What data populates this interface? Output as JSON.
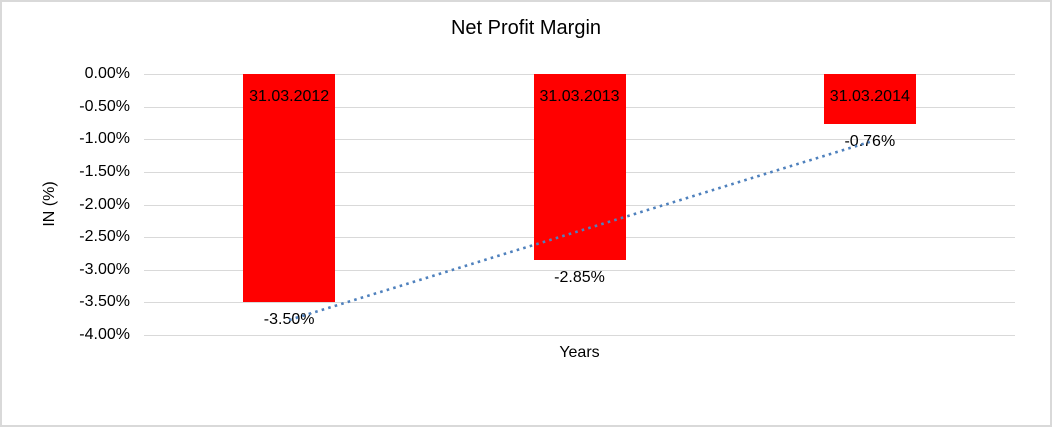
{
  "window": {
    "background": "#FFFFFF",
    "border_color": "#D9D9D9"
  },
  "chart_data": {
    "type": "bar",
    "title": "Net Profit Margin",
    "xlabel": "Years",
    "ylabel": "IN (%)",
    "categories": [
      "31.03.2012",
      "31.03.2013",
      "31.03.2014"
    ],
    "values": [
      -3.5,
      -2.85,
      -0.76
    ],
    "value_labels": [
      "-3.50%",
      "-2.85%",
      "-0.76%"
    ],
    "category_labels_position": "inside-bar-top",
    "value_labels_position": "below-bar",
    "bar_color": "#FF0000",
    "ylim": [
      -4,
      0
    ],
    "ytick_step": 0.5,
    "ytick_labels": [
      "0.00%",
      "-0.50%",
      "-1.00%",
      "-1.50%",
      "-2.00%",
      "-2.50%",
      "-3.00%",
      "-3.50%",
      "-4.00%"
    ],
    "grid": true,
    "gridline_color": "#D9D9D9",
    "legend": "none",
    "trendline": {
      "type": "linear",
      "style": "dotted",
      "color": "#4F81BD",
      "y_start": -3.77,
      "y_end": -1.04
    }
  }
}
